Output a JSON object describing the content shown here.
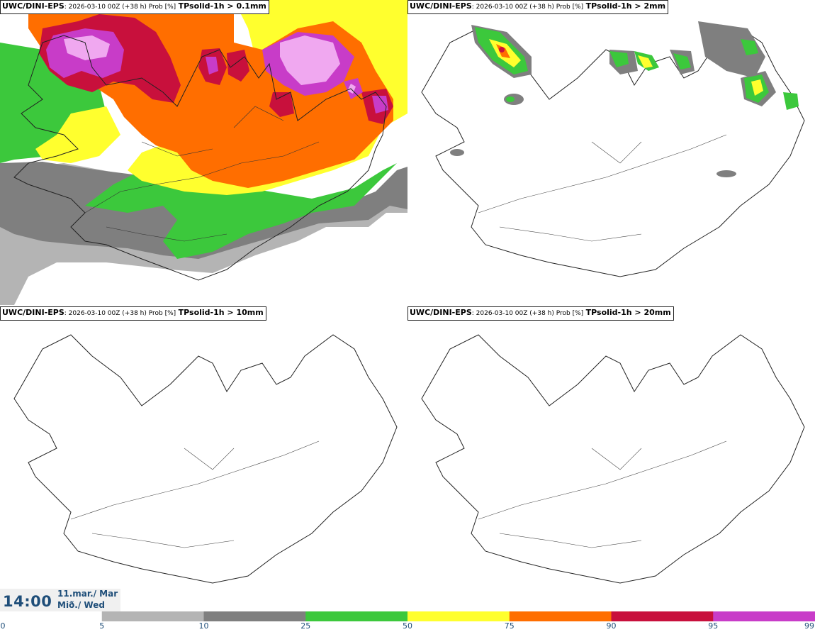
{
  "panels": [
    {
      "source": "UWC/DINI-EPS",
      "meta": ": 2026-03-10 00Z (+38 h) Prob [%]",
      "field": "TPsolid-1h > 0.1mm"
    },
    {
      "source": "UWC/DINI-EPS",
      "meta": ": 2026-03-10 00Z (+38 h) Prob [%]",
      "field": "TPsolid-1h > 2mm"
    },
    {
      "source": "UWC/DINI-EPS",
      "meta": ": 2026-03-10 00Z (+38 h) Prob [%]",
      "field": "TPsolid-1h > 10mm"
    },
    {
      "source": "UWC/DINI-EPS",
      "meta": ": 2026-03-10 00Z (+38 h) Prob [%]",
      "field": "TPsolid-1h > 20mm"
    }
  ],
  "valid_time": {
    "time": "14:00",
    "date_line1": "11.mar./ Mar",
    "date_line2": "Mið./ Wed"
  },
  "colorbar": {
    "ticks": [
      "0",
      "5",
      "10",
      "25",
      "50",
      "75",
      "90",
      "95",
      "99"
    ],
    "colors": [
      "#ffffff",
      "#b4b4b4",
      "#7f7f7f",
      "#3cc83c",
      "#ffff2e",
      "#ff6e00",
      "#c8103c",
      "#c83cc8",
      "#f0a8f0"
    ]
  },
  "palette": {
    "light_gray": "#b4b4b4",
    "gray": "#7f7f7f",
    "green": "#3cc83c",
    "yellow": "#ffff2e",
    "orange": "#ff6e00",
    "crimson": "#c8103c",
    "purple": "#c83cc8",
    "pink": "#f0a8f0",
    "coast": "#222222",
    "label_text": "#1f4e79"
  }
}
